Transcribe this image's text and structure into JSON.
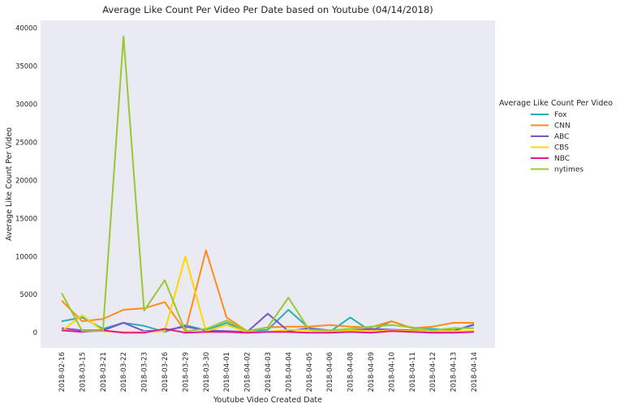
{
  "chart_data": {
    "type": "line",
    "title": "Average Like Count Per Video Per Date based on Youtube (04/14/2018)",
    "xlabel": "Youtube Video Created Date",
    "ylabel": "Average Like Count Per Video",
    "ylim": [
      -2000,
      41000
    ],
    "yticks": [
      0,
      5000,
      10000,
      15000,
      20000,
      25000,
      30000,
      35000,
      40000
    ],
    "grid": false,
    "legend": {
      "title": "Average Like Count Per Video",
      "placement": "right"
    },
    "categories": [
      "2018-02-16",
      "2018-03-15",
      "2018-03-21",
      "2018-03-22",
      "2018-03-23",
      "2018-03-26",
      "2018-03-29",
      "2018-03-30",
      "2018-04-01",
      "2018-04-02",
      "2018-04-03",
      "2018-04-04",
      "2018-04-05",
      "2018-04-06",
      "2018-04-08",
      "2018-04-09",
      "2018-04-10",
      "2018-04-11",
      "2018-04-12",
      "2018-04-13",
      "2018-04-14"
    ],
    "series": [
      {
        "name": "Fox",
        "color": "#2ab0b0",
        "values": [
          1500,
          2000,
          500,
          1300,
          900,
          100,
          1000,
          300,
          1300,
          100,
          400,
          3000,
          600,
          100,
          2000,
          200,
          1500,
          600,
          500,
          300,
          1000
        ]
      },
      {
        "name": "CNN",
        "color": "#ff8c1a",
        "values": [
          4200,
          1500,
          1800,
          3000,
          3200,
          4000,
          200,
          10800,
          2000,
          200,
          700,
          800,
          800,
          1000,
          800,
          700,
          1500,
          600,
          800,
          1300,
          1300
        ]
      },
      {
        "name": "ABC",
        "color": "#7755cc",
        "values": [
          600,
          300,
          300,
          1300,
          200,
          300,
          800,
          300,
          200,
          100,
          2500,
          200,
          600,
          300,
          300,
          500,
          400,
          300,
          200,
          200,
          1100
        ]
      },
      {
        "name": "CBS",
        "color": "#ffd700",
        "values": [
          200,
          2300,
          200,
          100,
          100,
          200,
          10000,
          200,
          1000,
          100,
          100,
          400,
          300,
          100,
          300,
          200,
          300,
          200,
          200,
          200,
          200
        ]
      },
      {
        "name": "NBC",
        "color": "#e6178c",
        "values": [
          300,
          100,
          300,
          0,
          0,
          500,
          0,
          100,
          100,
          0,
          100,
          100,
          0,
          0,
          100,
          0,
          200,
          100,
          0,
          0,
          100
        ]
      },
      {
        "name": "nytimes",
        "color": "#99c832",
        "values": [
          5200,
          200,
          200,
          38900,
          2900,
          6900,
          200,
          500,
          1600,
          200,
          700,
          4600,
          400,
          300,
          500,
          800,
          1000,
          700,
          300,
          600,
          600
        ]
      }
    ]
  }
}
